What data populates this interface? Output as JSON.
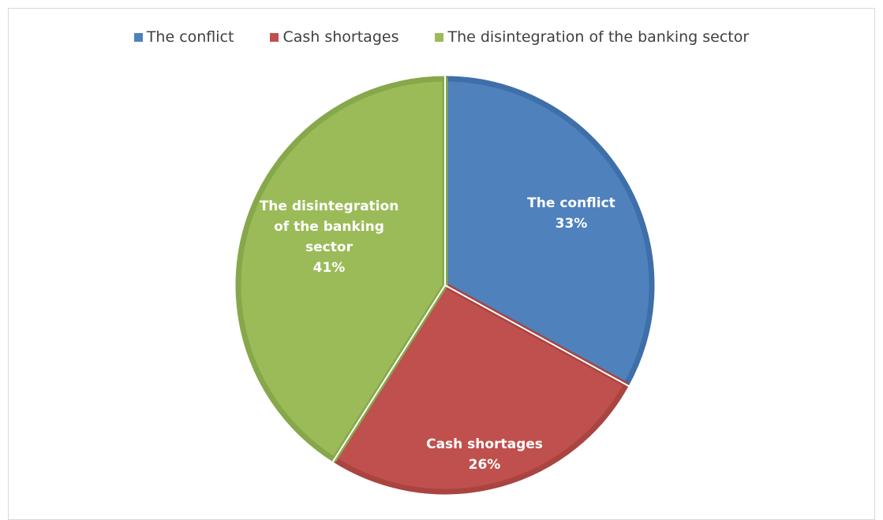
{
  "chart_data": {
    "type": "pie",
    "title": "",
    "categories": [
      "The conflict",
      "Cash shortages",
      "The disintegration of the banking sector"
    ],
    "values": [
      33,
      26,
      41
    ],
    "data_labels": [
      "33%",
      "26%",
      "41%"
    ],
    "colors": [
      "#4f81bd",
      "#c0504d",
      "#9bbb59"
    ],
    "edge_colors": [
      "#3f6fa8",
      "#a94441",
      "#86a84a"
    ],
    "legend_position": "top",
    "start_angle_deg": 0,
    "direction": "clockwise",
    "label_lines": [
      [
        "The conflict",
        "33%"
      ],
      [
        "Cash shortages",
        "26%"
      ],
      [
        "The disintegration",
        "of the banking",
        "sector",
        "41%"
      ]
    ]
  }
}
